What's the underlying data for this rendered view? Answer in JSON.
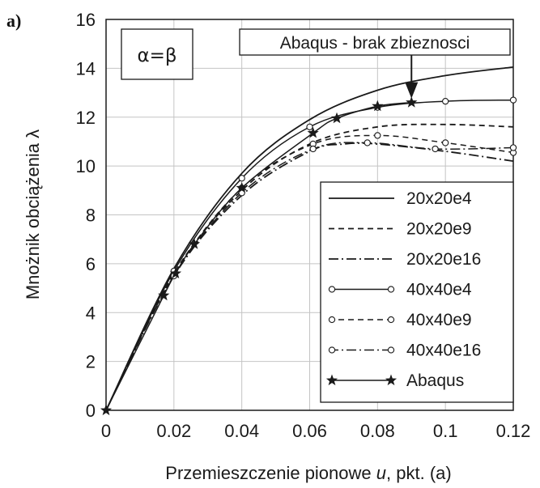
{
  "panel_label": "a)",
  "chart_data": {
    "type": "line",
    "title": "",
    "xlabel": "Przemieszczenie pionowe u, pkt. (a)",
    "xlabel_parts": {
      "before": "Przemieszczenie pionowe ",
      "var": "u",
      "after": ", pkt. (a)"
    },
    "ylabel": "Mnożnik obciążenia λ",
    "xlim": [
      0,
      0.12
    ],
    "ylim": [
      0,
      16
    ],
    "x_ticks": [
      0,
      0.02,
      0.04,
      0.06,
      0.08,
      0.1,
      0.12
    ],
    "x_tick_labels": [
      "0",
      "0.02",
      "0.04",
      "0.06",
      "0.08",
      "0.1",
      "0.12"
    ],
    "y_ticks": [
      0,
      2,
      4,
      6,
      8,
      10,
      12,
      14,
      16
    ],
    "y_tick_labels": [
      "0",
      "2",
      "4",
      "6",
      "8",
      "10",
      "12",
      "14",
      "16"
    ],
    "grid": true,
    "legend_position": "bottom-right",
    "annotation_box": "α=β",
    "annotation_arrow": {
      "text": "Abaqus - brak zbieznosci",
      "x": 0.09,
      "y": 12.7
    },
    "series": [
      {
        "name": "20x20e4",
        "style": "solid",
        "marker": "none",
        "x": [
          0,
          0.02,
          0.04,
          0.06,
          0.08,
          0.1,
          0.12
        ],
        "y": [
          0,
          5.8,
          9.7,
          11.9,
          13.1,
          13.7,
          14.05
        ]
      },
      {
        "name": "20x20e9",
        "style": "dashed",
        "marker": "none",
        "x": [
          0,
          0.02,
          0.04,
          0.06,
          0.08,
          0.1,
          0.12
        ],
        "y": [
          0,
          5.6,
          9.0,
          10.9,
          11.6,
          11.7,
          11.6
        ]
      },
      {
        "name": "20x20e16",
        "style": "dashdot",
        "marker": "none",
        "x": [
          0,
          0.02,
          0.04,
          0.06,
          0.07,
          0.08,
          0.1,
          0.12
        ],
        "y": [
          0,
          5.5,
          8.8,
          10.6,
          10.9,
          10.9,
          10.6,
          10.2
        ]
      },
      {
        "name": "40x40e4",
        "style": "solid",
        "marker": "circle",
        "x": [
          0,
          0.02,
          0.04,
          0.06,
          0.08,
          0.1,
          0.12
        ],
        "y": [
          0,
          5.7,
          9.5,
          11.6,
          12.4,
          12.65,
          12.7
        ]
      },
      {
        "name": "40x40e9",
        "style": "dashed",
        "marker": "circle",
        "x": [
          0,
          0.02,
          0.04,
          0.061,
          0.08,
          0.1,
          0.12
        ],
        "y": [
          0,
          5.55,
          9.1,
          10.9,
          11.25,
          10.95,
          10.55
        ]
      },
      {
        "name": "40x40e16",
        "style": "dashdot",
        "marker": "circle",
        "x": [
          0,
          0.02,
          0.04,
          0.061,
          0.077,
          0.097,
          0.12
        ],
        "y": [
          0,
          5.5,
          8.9,
          10.7,
          10.95,
          10.7,
          10.75
        ]
      },
      {
        "name": "Abaqus",
        "style": "solid",
        "marker": "star",
        "x": [
          0,
          0.017,
          0.0205,
          0.026,
          0.04,
          0.061,
          0.068,
          0.08,
          0.09
        ],
        "y": [
          0,
          4.7,
          5.6,
          6.8,
          9.1,
          11.35,
          11.95,
          12.45,
          12.6
        ]
      }
    ]
  }
}
